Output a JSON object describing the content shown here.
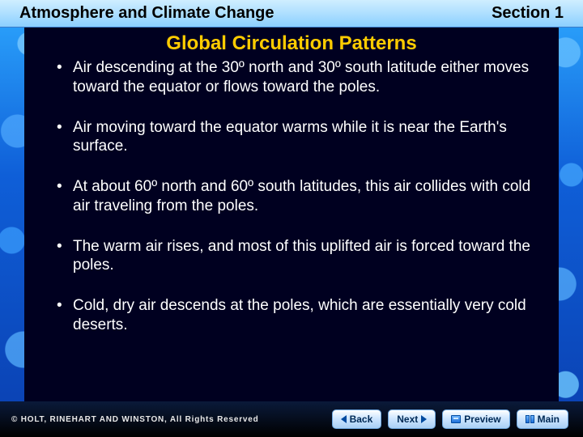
{
  "header": {
    "chapter": "Atmosphere and Climate Change",
    "section": "Section 1"
  },
  "slide": {
    "title": "Global Circulation Patterns",
    "bullets": [
      "Air descending at the 30º north and 30º south latitude either moves toward the equator or flows toward the poles.",
      "Air moving toward the equator warms while it is near the Earth's surface.",
      "At about 60º north and 60º south latitudes, this air collides with cold air traveling from the poles.",
      "The warm air rises, and most of this uplifted air is forced toward the poles.",
      "Cold, dry air descends at the poles, which are essentially very cold deserts."
    ]
  },
  "nav": {
    "back": "Back",
    "next": "Next",
    "preview": "Preview",
    "main": "Main"
  },
  "footer": {
    "copyright_prefix": "©",
    "brand": "HOLT, RINEHART AND WINSTON,",
    "rights": "All Rights Reserved"
  },
  "colors": {
    "title_color": "#ffcc00",
    "bg_top": "#2da8ff",
    "bg_bottom": "#0a3fb0",
    "panel_bg": "#000020",
    "text_color": "#ffffff"
  }
}
